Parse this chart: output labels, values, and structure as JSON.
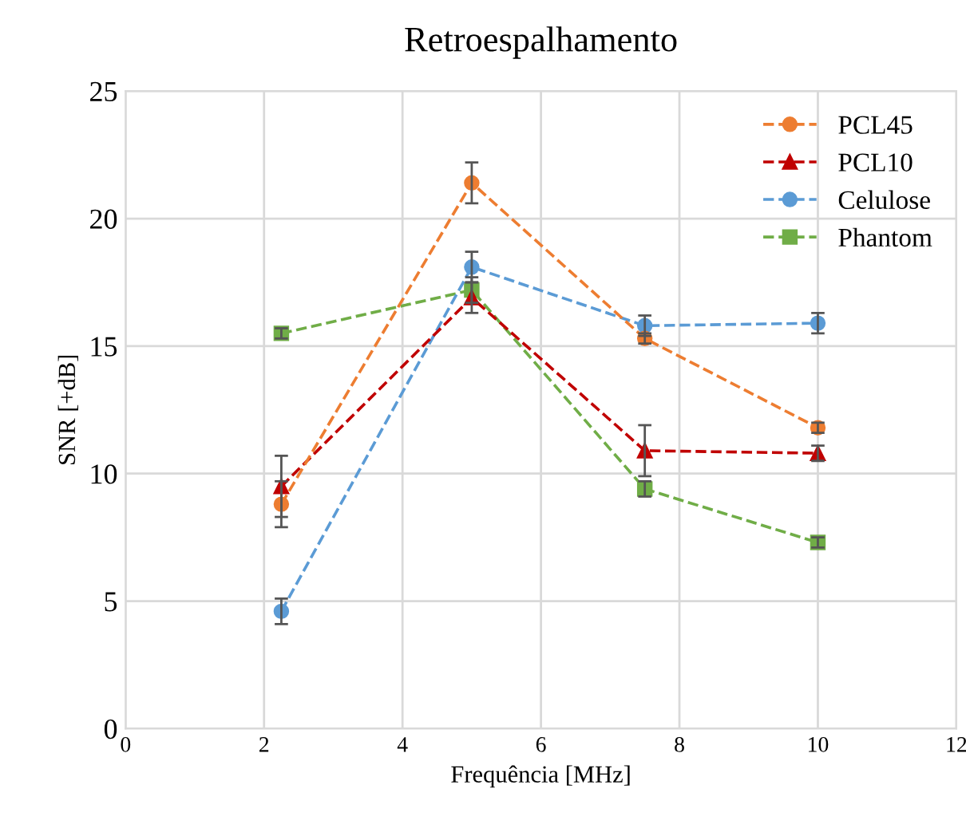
{
  "chart_data": {
    "type": "line",
    "title": "Retroespalhamento",
    "xlabel": "Frequência [MHz]",
    "ylabel": "SNR [+dB]",
    "x": [
      2.25,
      5,
      7.5,
      10
    ],
    "xlim": [
      0,
      12
    ],
    "xticks": [
      0,
      2,
      4,
      6,
      8,
      10,
      12
    ],
    "ylim": [
      0,
      25
    ],
    "yticks": [
      0,
      5,
      10,
      15,
      20,
      25
    ],
    "grid": true,
    "legend": "top right",
    "line_style": "dashed",
    "series": [
      {
        "name": "PCL45",
        "color": "#ed7d31",
        "marker": "circle",
        "values": [
          8.8,
          21.4,
          15.3,
          11.8
        ],
        "errors": [
          0.9,
          0.8,
          0.2,
          0.2
        ]
      },
      {
        "name": "PCL10",
        "color": "#c00000",
        "marker": "triangle",
        "values": [
          9.5,
          16.9,
          10.9,
          10.8
        ],
        "errors": [
          1.2,
          0.6,
          1.0,
          0.3
        ]
      },
      {
        "name": "Celulose",
        "color": "#5b9bd5",
        "marker": "circle",
        "values": [
          4.6,
          18.1,
          15.8,
          15.9
        ],
        "errors": [
          0.5,
          0.6,
          0.4,
          0.4
        ]
      },
      {
        "name": "Phantom",
        "color": "#70ad47",
        "marker": "square",
        "values": [
          15.5,
          17.2,
          9.4,
          7.3
        ],
        "errors": [
          0.2,
          0.5,
          0.3,
          0.2
        ]
      }
    ]
  }
}
